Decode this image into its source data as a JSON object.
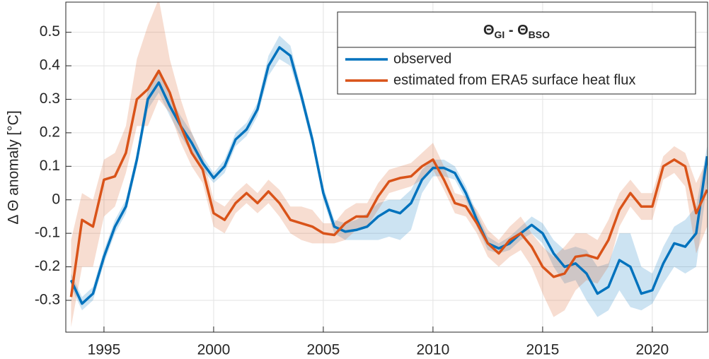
{
  "chart_data": {
    "type": "line",
    "legend_title": [
      "Θ",
      "GI",
      " - Θ",
      "BSO"
    ],
    "y_label": "Δ Θ anomaly [°C]",
    "xlim": [
      1993.26,
      2022.52
    ],
    "ylim": [
      -0.395,
      0.59
    ],
    "xticks": [
      1995,
      2000,
      2005,
      2010,
      2015,
      2020
    ],
    "yticks": [
      -0.3,
      -0.2,
      -0.1,
      0,
      0.1,
      0.2,
      0.3,
      0.4,
      0.5
    ],
    "grid": true,
    "legend_position": "upper-right",
    "x": [
      1993.5,
      1994,
      1994.5,
      1995,
      1995.5,
      1996,
      1996.5,
      1997,
      1997.5,
      1998,
      1998.5,
      1999,
      1999.5,
      2000,
      2000.5,
      2001,
      2001.5,
      2002,
      2002.5,
      2003,
      2003.5,
      2004,
      2004.5,
      2005,
      2005.5,
      2006,
      2006.5,
      2007,
      2007.5,
      2008,
      2008.5,
      2009,
      2009.5,
      2010,
      2010.5,
      2011,
      2011.5,
      2012,
      2012.5,
      2013,
      2013.5,
      2014,
      2014.5,
      2015,
      2015.5,
      2016,
      2016.5,
      2017,
      2017.5,
      2018,
      2018.5,
      2019,
      2019.5,
      2020,
      2020.5,
      2021,
      2021.5,
      2022,
      2022.5
    ],
    "series": [
      {
        "name": "observed",
        "color": "#0072BD",
        "values": [
          -0.24,
          -0.31,
          -0.28,
          -0.17,
          -0.08,
          -0.02,
          0.12,
          0.3,
          0.35,
          0.28,
          0.22,
          0.17,
          0.11,
          0.065,
          0.1,
          0.18,
          0.21,
          0.27,
          0.4,
          0.455,
          0.43,
          0.31,
          0.18,
          0.02,
          -0.08,
          -0.095,
          -0.09,
          -0.08,
          -0.05,
          -0.03,
          -0.04,
          -0.01,
          0.06,
          0.095,
          0.095,
          0.08,
          0.02,
          -0.06,
          -0.13,
          -0.145,
          -0.13,
          -0.1,
          -0.075,
          -0.1,
          -0.16,
          -0.2,
          -0.19,
          -0.22,
          -0.28,
          -0.26,
          -0.18,
          -0.2,
          -0.28,
          -0.27,
          -0.19,
          -0.13,
          -0.14,
          -0.1,
          0.13
        ],
        "lower": [
          -0.26,
          -0.33,
          -0.3,
          -0.19,
          -0.1,
          -0.04,
          0.1,
          0.27,
          0.32,
          0.25,
          0.19,
          0.14,
          0.09,
          0.05,
          0.08,
          0.16,
          0.19,
          0.25,
          0.37,
          0.42,
          0.4,
          0.29,
          0.16,
          0.0,
          -0.1,
          -0.12,
          -0.12,
          -0.12,
          -0.12,
          -0.11,
          -0.12,
          -0.09,
          0.02,
          0.07,
          0.07,
          0.06,
          0.0,
          -0.08,
          -0.15,
          -0.16,
          -0.15,
          -0.12,
          -0.1,
          -0.13,
          -0.2,
          -0.25,
          -0.24,
          -0.3,
          -0.35,
          -0.33,
          -0.27,
          -0.32,
          -0.33,
          -0.31,
          -0.25,
          -0.2,
          -0.22,
          -0.2,
          0.05
        ],
        "upper": [
          -0.22,
          -0.29,
          -0.26,
          -0.15,
          -0.06,
          0.0,
          0.14,
          0.33,
          0.38,
          0.31,
          0.25,
          0.2,
          0.13,
          0.08,
          0.12,
          0.2,
          0.23,
          0.29,
          0.43,
          0.49,
          0.46,
          0.33,
          0.2,
          0.04,
          -0.06,
          -0.07,
          -0.06,
          -0.04,
          -0.01,
          0.0,
          0.0,
          0.03,
          0.09,
          0.12,
          0.12,
          0.1,
          0.04,
          -0.04,
          -0.11,
          -0.13,
          -0.11,
          -0.08,
          -0.05,
          -0.07,
          -0.12,
          -0.15,
          -0.14,
          -0.15,
          -0.2,
          -0.19,
          -0.1,
          -0.1,
          -0.2,
          -0.22,
          -0.14,
          -0.08,
          -0.06,
          -0.02,
          0.16
        ]
      },
      {
        "name": "estimated from ERA5 surface heat flux",
        "color": "#D95319",
        "values": [
          -0.29,
          -0.06,
          -0.08,
          0.06,
          0.07,
          0.14,
          0.3,
          0.33,
          0.385,
          0.32,
          0.22,
          0.14,
          0.09,
          -0.04,
          -0.06,
          -0.01,
          0.02,
          -0.01,
          0.025,
          -0.01,
          -0.06,
          -0.07,
          -0.08,
          -0.1,
          -0.105,
          -0.07,
          -0.05,
          -0.05,
          0.01,
          0.055,
          0.065,
          0.07,
          0.1,
          0.12,
          0.06,
          -0.01,
          -0.02,
          -0.07,
          -0.13,
          -0.16,
          -0.12,
          -0.1,
          -0.14,
          -0.2,
          -0.23,
          -0.22,
          -0.17,
          -0.165,
          -0.175,
          -0.12,
          -0.03,
          0.02,
          -0.02,
          -0.02,
          0.1,
          0.12,
          0.1,
          -0.04,
          0.03
        ],
        "lower": [
          -0.38,
          -0.2,
          -0.2,
          -0.05,
          -0.02,
          0.08,
          0.22,
          0.22,
          0.3,
          0.26,
          0.17,
          0.1,
          0.05,
          -0.08,
          -0.1,
          -0.04,
          -0.01,
          -0.04,
          -0.01,
          -0.05,
          -0.1,
          -0.12,
          -0.13,
          -0.13,
          -0.13,
          -0.12,
          -0.09,
          -0.08,
          -0.03,
          0.02,
          0.03,
          0.04,
          0.06,
          0.09,
          0.03,
          -0.04,
          -0.05,
          -0.1,
          -0.17,
          -0.2,
          -0.17,
          -0.15,
          -0.2,
          -0.28,
          -0.35,
          -0.33,
          -0.27,
          -0.24,
          -0.25,
          -0.2,
          -0.08,
          -0.02,
          -0.06,
          -0.06,
          0.06,
          0.08,
          0.04,
          -0.16,
          -0.08
        ],
        "upper": [
          -0.12,
          0.02,
          0.0,
          0.12,
          0.14,
          0.22,
          0.42,
          0.52,
          0.6,
          0.42,
          0.3,
          0.2,
          0.13,
          0.0,
          -0.02,
          0.02,
          0.05,
          0.02,
          0.06,
          0.03,
          -0.02,
          -0.02,
          -0.03,
          -0.07,
          -0.07,
          -0.03,
          -0.01,
          -0.01,
          0.05,
          0.09,
          0.1,
          0.11,
          0.14,
          0.17,
          0.1,
          0.02,
          0.01,
          -0.03,
          -0.09,
          -0.12,
          -0.08,
          -0.05,
          -0.1,
          -0.14,
          -0.17,
          -0.14,
          -0.1,
          -0.1,
          -0.12,
          -0.06,
          0.02,
          0.06,
          0.02,
          0.02,
          0.13,
          0.16,
          0.14,
          0.05,
          0.12
        ]
      }
    ]
  }
}
